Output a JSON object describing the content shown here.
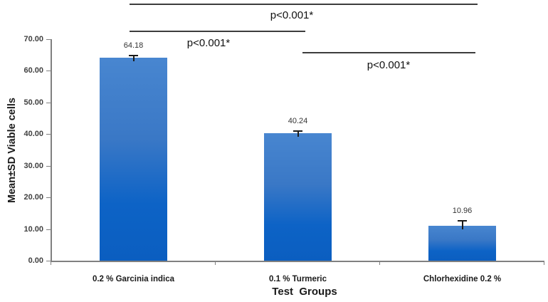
{
  "figure": {
    "y_axis_title": "Mean±SD Viable cells",
    "x_axis_title": "Test  Groups"
  },
  "chart_data": {
    "type": "bar",
    "title": "",
    "xlabel": "Test  Groups",
    "ylabel": "Mean±SD Viable cells",
    "categories": [
      "0.2 % Garcinia indica",
      "0.1 % Turmeric",
      "Chlorhexidine 0.2 %"
    ],
    "values": [
      64.18,
      40.24,
      10.96
    ],
    "value_labels": [
      "64.18",
      "40.24",
      "10.96"
    ],
    "error_bars": {
      "visible": true,
      "approx_sd_upper": [
        0.8,
        1.0,
        1.9
      ]
    },
    "ylim": [
      0,
      70
    ],
    "ytick_step": 10,
    "ytick_labels": [
      "0.00",
      "10.00",
      "20.00",
      "30.00",
      "40.00",
      "50.00",
      "60.00",
      "70.00"
    ],
    "grid": false,
    "legend": null,
    "bar_color_top": "#4886d0",
    "bar_color_bottom": "#0b5ec0",
    "axis_color": "#808080",
    "significance": [
      {
        "between": [
          "0.2 % Garcinia indica",
          "Chlorhexidine 0.2 %"
        ],
        "pair": [
          0,
          2
        ],
        "label": "p<0.001*"
      },
      {
        "between": [
          "0.2 % Garcinia indica",
          "0.1 % Turmeric"
        ],
        "pair": [
          0,
          1
        ],
        "label": "p<0.001*"
      },
      {
        "between": [
          "0.1 % Turmeric",
          "Chlorhexidine 0.2 %"
        ],
        "pair": [
          1,
          2
        ],
        "label": "p<0.001*"
      }
    ]
  }
}
